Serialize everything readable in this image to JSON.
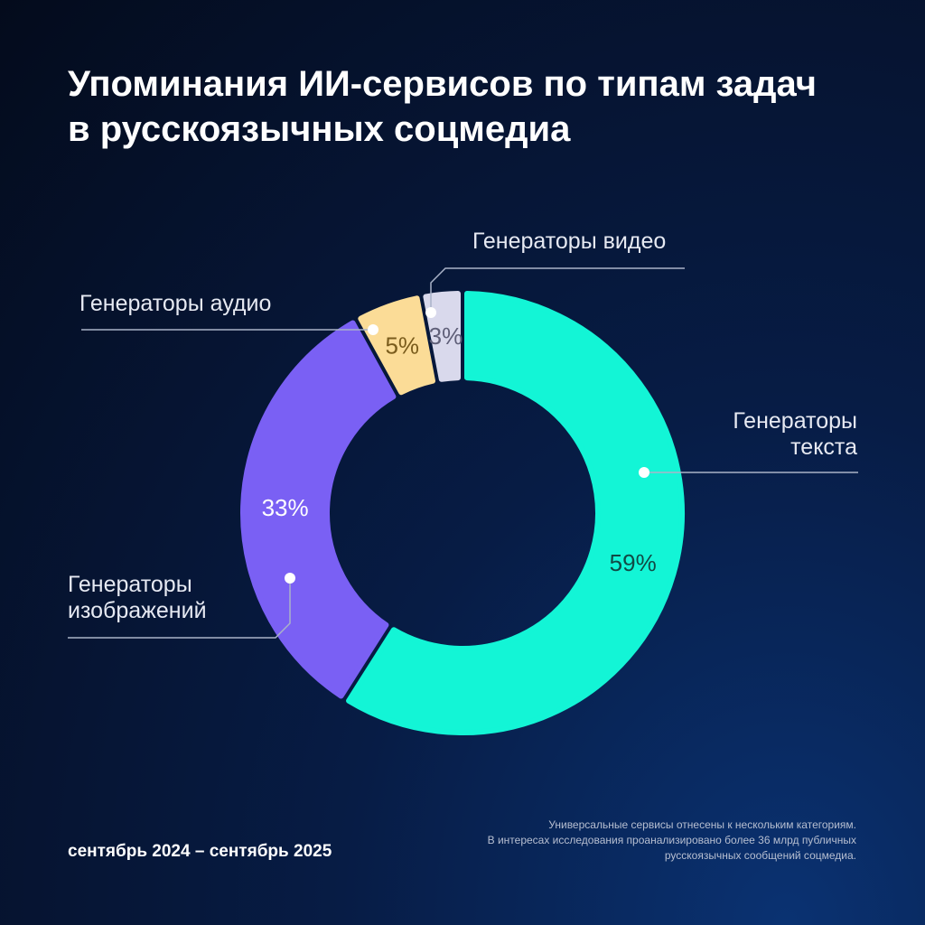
{
  "title_lines": [
    "Упоминания ИИ-сервисов по типам задач",
    "в русскоязычных соцмедиа"
  ],
  "period": "сентябрь 2024 – сентябрь 2025",
  "footnote_lines": [
    "Универсальные сервисы отнесены к нескольким категориям.",
    "В интересах исследования проанализировано более 36 млрд публичных",
    "русскоязычных сообщений соцмедиа."
  ],
  "chart_data": {
    "type": "pie",
    "style": "donut",
    "title": "Упоминания ИИ-сервисов по типам задач в русскоязычных соцмедиа",
    "slices": [
      {
        "label_lines": [
          "Генераторы",
          "текста"
        ],
        "value": 59,
        "value_label": "59%",
        "color": "#13f5d6",
        "text_color": "#114a45"
      },
      {
        "label_lines": [
          "Генераторы",
          "изображений"
        ],
        "value": 33,
        "value_label": "33%",
        "color": "#7a60f4",
        "text_color": "#ffffff"
      },
      {
        "label_lines": [
          "Генераторы аудио"
        ],
        "value": 5,
        "value_label": "5%",
        "color": "#fbdc97",
        "text_color": "#7a5c1c"
      },
      {
        "label_lines": [
          "Генераторы видео"
        ],
        "value": 3,
        "value_label": "3%",
        "color": "#d9d9ec",
        "text_color": "#5f5f78"
      }
    ],
    "legend": "callouts"
  }
}
